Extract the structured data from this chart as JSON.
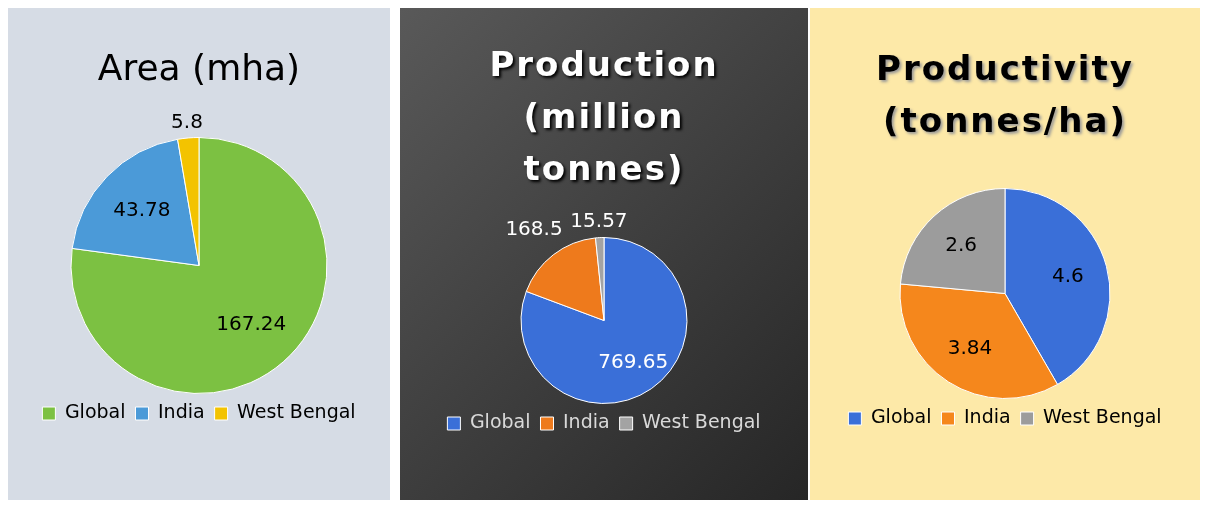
{
  "chart_data": [
    {
      "type": "pie",
      "title": "Area (mha)",
      "categories": [
        "Global",
        "India",
        "West Bengal"
      ],
      "values": [
        167.24,
        43.78,
        5.8
      ],
      "colors": [
        "#7cc142",
        "#4b9ad8",
        "#f3c300"
      ],
      "data_labels": true,
      "legend": "bottom"
    },
    {
      "type": "pie",
      "title": "Production (million tonnes)",
      "categories": [
        "Global",
        "India",
        "West Bengal"
      ],
      "values": [
        769.65,
        168.5,
        15.57
      ],
      "colors": [
        "#3a6fd8",
        "#ee7a1c",
        "#a3a3a3"
      ],
      "data_labels": true,
      "legend": "bottom"
    },
    {
      "type": "pie",
      "title": "Productivity (tonnes/ha)",
      "categories": [
        "Global",
        "India",
        "West Bengal"
      ],
      "values": [
        4.6,
        3.84,
        2.6
      ],
      "colors": [
        "#3a6fd8",
        "#f5871c",
        "#9c9c9c"
      ],
      "data_labels": true,
      "legend": "bottom"
    }
  ]
}
